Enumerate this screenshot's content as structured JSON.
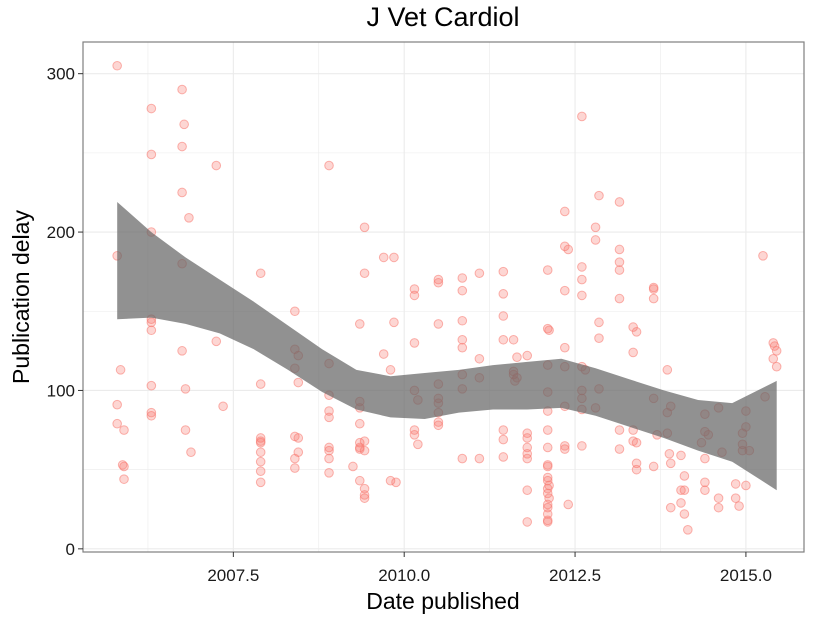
{
  "chart_data": {
    "type": "scatter",
    "title": "J Vet Cardiol",
    "xlabel": "Date published",
    "ylabel": "Publication delay",
    "xlim": [
      2005.3,
      2015.85
    ],
    "ylim": [
      -2,
      320
    ],
    "x_ticks": [
      2007.5,
      2010.0,
      2012.5,
      2015.0
    ],
    "x_tick_labels": [
      "2007.5",
      "2010.0",
      "2012.5",
      "2015.0"
    ],
    "y_ticks": [
      0,
      100,
      200,
      300
    ],
    "y_tick_labels": [
      "0",
      "100",
      "200",
      "300"
    ],
    "grid": true,
    "colors": {
      "points": "#f8766d",
      "band": "#666666",
      "panel_border": "#7f7f7f",
      "grid": "#ebebeb"
    },
    "series": [
      {
        "points": [
          [
            2005.8,
            305
          ],
          [
            2005.8,
            185
          ],
          [
            2005.8,
            91
          ],
          [
            2005.8,
            79
          ],
          [
            2005.85,
            113
          ],
          [
            2005.88,
            53
          ],
          [
            2005.9,
            52
          ],
          [
            2005.9,
            75
          ],
          [
            2005.9,
            44
          ],
          [
            2006.3,
            278
          ],
          [
            2006.3,
            249
          ],
          [
            2006.3,
            200
          ],
          [
            2006.3,
            145
          ],
          [
            2006.3,
            143
          ],
          [
            2006.3,
            138
          ],
          [
            2006.3,
            103
          ],
          [
            2006.3,
            86
          ],
          [
            2006.3,
            84
          ],
          [
            2006.75,
            290
          ],
          [
            2006.75,
            254
          ],
          [
            2006.75,
            225
          ],
          [
            2006.75,
            180
          ],
          [
            2006.75,
            125
          ],
          [
            2006.78,
            268
          ],
          [
            2006.8,
            101
          ],
          [
            2006.8,
            75
          ],
          [
            2006.85,
            209
          ],
          [
            2006.88,
            61
          ],
          [
            2007.25,
            242
          ],
          [
            2007.25,
            131
          ],
          [
            2007.35,
            90
          ],
          [
            2007.9,
            174
          ],
          [
            2007.9,
            104
          ],
          [
            2007.9,
            70
          ],
          [
            2007.9,
            68
          ],
          [
            2007.9,
            67
          ],
          [
            2007.9,
            61
          ],
          [
            2007.9,
            55
          ],
          [
            2007.9,
            49
          ],
          [
            2007.9,
            42
          ],
          [
            2008.4,
            150
          ],
          [
            2008.4,
            126
          ],
          [
            2008.45,
            122
          ],
          [
            2008.4,
            114
          ],
          [
            2008.45,
            105
          ],
          [
            2008.4,
            71
          ],
          [
            2008.45,
            70
          ],
          [
            2008.45,
            61
          ],
          [
            2008.4,
            57
          ],
          [
            2008.4,
            51
          ],
          [
            2008.9,
            242
          ],
          [
            2008.9,
            117
          ],
          [
            2008.9,
            97
          ],
          [
            2008.9,
            87
          ],
          [
            2008.9,
            83
          ],
          [
            2008.9,
            64
          ],
          [
            2008.9,
            62
          ],
          [
            2008.9,
            57
          ],
          [
            2008.9,
            48
          ],
          [
            2009.25,
            52
          ],
          [
            2009.35,
            142
          ],
          [
            2009.35,
            93
          ],
          [
            2009.35,
            89
          ],
          [
            2009.35,
            79
          ],
          [
            2009.35,
            67
          ],
          [
            2009.35,
            64
          ],
          [
            2009.35,
            63
          ],
          [
            2009.35,
            43
          ],
          [
            2009.42,
            203
          ],
          [
            2009.42,
            174
          ],
          [
            2009.42,
            68
          ],
          [
            2009.42,
            62
          ],
          [
            2009.42,
            38
          ],
          [
            2009.42,
            34
          ],
          [
            2009.42,
            32
          ],
          [
            2009.7,
            184
          ],
          [
            2009.7,
            123
          ],
          [
            2009.8,
            113
          ],
          [
            2009.8,
            43
          ],
          [
            2009.85,
            184
          ],
          [
            2009.85,
            143
          ],
          [
            2009.88,
            42
          ],
          [
            2010.15,
            164
          ],
          [
            2010.15,
            160
          ],
          [
            2010.15,
            130
          ],
          [
            2010.15,
            100
          ],
          [
            2010.15,
            75
          ],
          [
            2010.15,
            72
          ],
          [
            2010.2,
            94
          ],
          [
            2010.2,
            66
          ],
          [
            2010.5,
            170
          ],
          [
            2010.5,
            168
          ],
          [
            2010.5,
            142
          ],
          [
            2010.5,
            104
          ],
          [
            2010.5,
            95
          ],
          [
            2010.5,
            92
          ],
          [
            2010.5,
            86
          ],
          [
            2010.5,
            80
          ],
          [
            2010.5,
            78
          ],
          [
            2010.85,
            171
          ],
          [
            2010.85,
            163
          ],
          [
            2010.85,
            144
          ],
          [
            2010.85,
            132
          ],
          [
            2010.85,
            127
          ],
          [
            2010.85,
            110
          ],
          [
            2010.85,
            101
          ],
          [
            2010.85,
            57
          ],
          [
            2011.1,
            174
          ],
          [
            2011.1,
            120
          ],
          [
            2011.1,
            108
          ],
          [
            2011.1,
            57
          ],
          [
            2011.45,
            175
          ],
          [
            2011.45,
            161
          ],
          [
            2011.45,
            147
          ],
          [
            2011.45,
            132
          ],
          [
            2011.45,
            75
          ],
          [
            2011.45,
            69
          ],
          [
            2011.45,
            58
          ],
          [
            2011.6,
            132
          ],
          [
            2011.65,
            121
          ],
          [
            2011.6,
            112
          ],
          [
            2011.6,
            110
          ],
          [
            2011.65,
            108
          ],
          [
            2011.62,
            106
          ],
          [
            2011.8,
            122
          ],
          [
            2011.8,
            73
          ],
          [
            2011.8,
            70
          ],
          [
            2011.8,
            64
          ],
          [
            2011.8,
            60
          ],
          [
            2011.8,
            57
          ],
          [
            2011.8,
            37
          ],
          [
            2011.8,
            17
          ],
          [
            2012.1,
            176
          ],
          [
            2012.1,
            139
          ],
          [
            2012.12,
            138
          ],
          [
            2012.1,
            116
          ],
          [
            2012.1,
            99
          ],
          [
            2012.1,
            87
          ],
          [
            2012.1,
            75
          ],
          [
            2012.1,
            64
          ],
          [
            2012.1,
            53
          ],
          [
            2012.1,
            52
          ],
          [
            2012.1,
            45
          ],
          [
            2012.1,
            43
          ],
          [
            2012.12,
            40
          ],
          [
            2012.1,
            38
          ],
          [
            2012.1,
            35
          ],
          [
            2012.12,
            32
          ],
          [
            2012.1,
            28
          ],
          [
            2012.1,
            26
          ],
          [
            2012.1,
            22
          ],
          [
            2012.1,
            18
          ],
          [
            2012.1,
            17
          ],
          [
            2012.35,
            213
          ],
          [
            2012.35,
            191
          ],
          [
            2012.4,
            189
          ],
          [
            2012.35,
            163
          ],
          [
            2012.35,
            127
          ],
          [
            2012.35,
            115
          ],
          [
            2012.35,
            90
          ],
          [
            2012.35,
            65
          ],
          [
            2012.35,
            63
          ],
          [
            2012.4,
            28
          ],
          [
            2012.6,
            273
          ],
          [
            2012.6,
            178
          ],
          [
            2012.6,
            170
          ],
          [
            2012.6,
            160
          ],
          [
            2012.6,
            115
          ],
          [
            2012.65,
            113
          ],
          [
            2012.6,
            100
          ],
          [
            2012.6,
            95
          ],
          [
            2012.6,
            88
          ],
          [
            2012.6,
            65
          ],
          [
            2012.85,
            223
          ],
          [
            2012.8,
            203
          ],
          [
            2012.8,
            195
          ],
          [
            2012.85,
            143
          ],
          [
            2012.85,
            133
          ],
          [
            2012.85,
            101
          ],
          [
            2012.8,
            89
          ],
          [
            2013.15,
            219
          ],
          [
            2013.15,
            189
          ],
          [
            2013.15,
            181
          ],
          [
            2013.15,
            176
          ],
          [
            2013.15,
            158
          ],
          [
            2013.15,
            75
          ],
          [
            2013.15,
            63
          ],
          [
            2013.35,
            140
          ],
          [
            2013.4,
            137
          ],
          [
            2013.35,
            124
          ],
          [
            2013.35,
            75
          ],
          [
            2013.35,
            68
          ],
          [
            2013.4,
            67
          ],
          [
            2013.4,
            54
          ],
          [
            2013.4,
            50
          ],
          [
            2013.65,
            165
          ],
          [
            2013.65,
            164
          ],
          [
            2013.65,
            158
          ],
          [
            2013.65,
            95
          ],
          [
            2013.7,
            72
          ],
          [
            2013.65,
            52
          ],
          [
            2013.85,
            113
          ],
          [
            2013.9,
            90
          ],
          [
            2013.85,
            86
          ],
          [
            2013.85,
            73
          ],
          [
            2013.88,
            60
          ],
          [
            2013.9,
            54
          ],
          [
            2013.9,
            26
          ],
          [
            2014.05,
            59
          ],
          [
            2014.1,
            46
          ],
          [
            2014.05,
            37
          ],
          [
            2014.1,
            37
          ],
          [
            2014.05,
            29
          ],
          [
            2014.1,
            22
          ],
          [
            2014.15,
            12
          ],
          [
            2014.4,
            85
          ],
          [
            2014.4,
            74
          ],
          [
            2014.45,
            72
          ],
          [
            2014.35,
            67
          ],
          [
            2014.4,
            57
          ],
          [
            2014.4,
            42
          ],
          [
            2014.4,
            37
          ],
          [
            2014.6,
            89
          ],
          [
            2014.65,
            61
          ],
          [
            2014.6,
            32
          ],
          [
            2014.6,
            26
          ],
          [
            2014.85,
            41
          ],
          [
            2014.85,
            32
          ],
          [
            2014.9,
            27
          ],
          [
            2014.95,
            73
          ],
          [
            2014.95,
            66
          ],
          [
            2014.95,
            62
          ],
          [
            2015.0,
            87
          ],
          [
            2015.0,
            77
          ],
          [
            2015.05,
            62
          ],
          [
            2015.0,
            40
          ],
          [
            2015.25,
            185
          ],
          [
            2015.28,
            96
          ],
          [
            2015.4,
            130
          ],
          [
            2015.42,
            128
          ],
          [
            2015.45,
            125
          ],
          [
            2015.4,
            120
          ],
          [
            2015.45,
            115
          ]
        ]
      }
    ],
    "smooth_band": {
      "x": [
        2005.8,
        2006.3,
        2006.8,
        2007.3,
        2007.8,
        2008.3,
        2008.8,
        2009.3,
        2009.8,
        2010.3,
        2010.8,
        2011.3,
        2011.8,
        2012.3,
        2012.8,
        2013.3,
        2013.8,
        2014.3,
        2014.8,
        2015.45
      ],
      "upper": [
        219,
        200,
        184,
        170,
        156,
        141,
        126,
        113,
        109,
        111,
        113,
        116,
        118,
        120,
        114,
        107,
        100,
        94,
        92,
        106
      ],
      "lower": [
        145,
        146,
        142,
        136,
        126,
        113,
        99,
        88,
        83,
        82,
        86,
        88,
        88,
        89,
        84,
        77,
        70,
        62,
        55,
        37
      ]
    }
  }
}
